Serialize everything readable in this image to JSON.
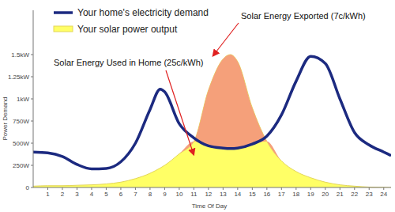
{
  "chart_data": {
    "type": "area",
    "x_label": "Time Of Day",
    "y_label": "Power Demand",
    "annotations": [
      "Solar Energy Exported (7c/kWh)",
      "Solar Energy Used in Home (25c/kWh)"
    ],
    "x": [
      0,
      1,
      2,
      3,
      4,
      5,
      6,
      7,
      8,
      8.7,
      9,
      10,
      11,
      12,
      13,
      13.5,
      14,
      15,
      16,
      17,
      18,
      19,
      20,
      21,
      22,
      23,
      24,
      24.5
    ],
    "series": [
      {
        "name": "Your home's electricity demand",
        "color": "#1c2a80",
        "type": "line",
        "values": [
          400,
          390,
          350,
          260,
          210,
          215,
          290,
          500,
          880,
          1110,
          1080,
          720,
          560,
          470,
          445,
          440,
          445,
          490,
          580,
          820,
          1200,
          1480,
          1400,
          1000,
          620,
          480,
          400,
          360
        ]
      },
      {
        "name": "Your solar power output",
        "color": "#ffff66",
        "type": "area",
        "values": [
          15,
          20,
          20,
          25,
          30,
          40,
          60,
          100,
          160,
          220,
          250,
          380,
          520,
          1100,
          1450,
          1500,
          1420,
          900,
          520,
          300,
          180,
          110,
          60,
          30,
          15,
          5,
          2,
          0
        ]
      }
    ],
    "xlim": [
      0,
      24.5
    ],
    "xticks": [
      1,
      2,
      3,
      4,
      5,
      6,
      7,
      8,
      9,
      10,
      11,
      12,
      13,
      14,
      15,
      16,
      17,
      18,
      19,
      20,
      21,
      22,
      23,
      24
    ],
    "ylim": [
      0,
      2000
    ],
    "yticks": [
      0,
      {
        "value": 250,
        "label": "250W"
      },
      {
        "value": 500,
        "label": "500W"
      },
      {
        "value": 750,
        "label": "750W"
      },
      {
        "value": 1000,
        "label": "1kW"
      },
      {
        "value": 1250,
        "label": "1.25kW"
      },
      {
        "value": 1500,
        "label": "1.5kW"
      }
    ],
    "grid": false,
    "legend": "upper left"
  }
}
